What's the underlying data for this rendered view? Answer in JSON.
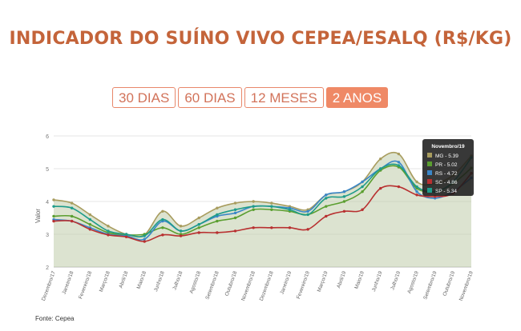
{
  "header": {
    "title": "INDICADOR DO SUÍNO VIVO CEPEA/ESALQ (R$/KG)"
  },
  "tabs": [
    {
      "label": "30 DIAS",
      "active": false
    },
    {
      "label": "60 DIAS",
      "active": false
    },
    {
      "label": "12 MESES",
      "active": false
    },
    {
      "label": "2 ANOS",
      "active": true
    }
  ],
  "source": "Fonte: Cepea",
  "chart_data": {
    "type": "line",
    "ylabel": "Valor",
    "ylim": [
      2,
      6
    ],
    "yticks": [
      "2",
      "3",
      "4",
      "5",
      "6"
    ],
    "grid": true,
    "categories": [
      "Dezembro/17",
      "Janeiro/18",
      "Fevereiro/18",
      "Março/18",
      "Abril/18",
      "Maio/18",
      "Junho/18",
      "Julho/18",
      "Agosto/18",
      "Setembro/18",
      "Outubro/18",
      "Novembro/18",
      "Dezembro/18",
      "Janeiro/19",
      "Fevereiro/19",
      "Março/19",
      "Abril/19",
      "Maio/19",
      "Junho/19",
      "Julho/19",
      "Agosto/19",
      "Setembro/19",
      "Outubro/19",
      "Novembro/19"
    ],
    "series": [
      {
        "name": "MG",
        "color": "#a89c5e",
        "values": [
          4.05,
          3.95,
          3.6,
          3.25,
          3.0,
          2.98,
          3.7,
          3.25,
          3.5,
          3.8,
          3.95,
          4.0,
          3.95,
          3.85,
          3.75,
          4.2,
          4.3,
          4.6,
          5.3,
          5.45,
          4.6,
          4.55,
          4.8,
          5.39
        ]
      },
      {
        "name": "PR",
        "color": "#5a9e2f",
        "values": [
          3.55,
          3.55,
          3.3,
          3.05,
          2.98,
          3.0,
          3.2,
          3.0,
          3.2,
          3.4,
          3.5,
          3.75,
          3.75,
          3.7,
          3.6,
          3.85,
          4.0,
          4.3,
          4.95,
          5.05,
          4.4,
          4.3,
          4.55,
          5.02
        ]
      },
      {
        "name": "RS",
        "color": "#3a86c8",
        "values": [
          3.45,
          3.4,
          3.2,
          3.0,
          2.95,
          2.85,
          3.4,
          3.1,
          3.3,
          3.55,
          3.65,
          3.85,
          3.85,
          3.8,
          3.7,
          4.2,
          4.3,
          4.6,
          5.0,
          5.2,
          4.3,
          4.1,
          4.3,
          4.72
        ]
      },
      {
        "name": "SC",
        "color": "#b83030",
        "values": [
          3.4,
          3.4,
          3.15,
          2.98,
          2.92,
          2.78,
          2.98,
          2.95,
          3.05,
          3.05,
          3.1,
          3.2,
          3.2,
          3.2,
          3.15,
          3.55,
          3.7,
          3.75,
          4.4,
          4.45,
          4.2,
          4.15,
          4.25,
          4.86
        ]
      },
      {
        "name": "SP",
        "color": "#1f9c8a",
        "values": [
          3.85,
          3.8,
          3.45,
          3.1,
          3.0,
          2.95,
          3.45,
          3.1,
          3.3,
          3.6,
          3.75,
          3.85,
          3.85,
          3.75,
          3.6,
          4.1,
          4.15,
          4.45,
          5.0,
          5.1,
          4.45,
          4.3,
          4.6,
          5.34
        ]
      }
    ],
    "tooltip": {
      "title": "Novembro/19",
      "entries": [
        "MG - 5.39",
        "PR - 5.02",
        "RS - 4.72",
        "SC - 4.86",
        "SP - 5.34"
      ]
    }
  }
}
